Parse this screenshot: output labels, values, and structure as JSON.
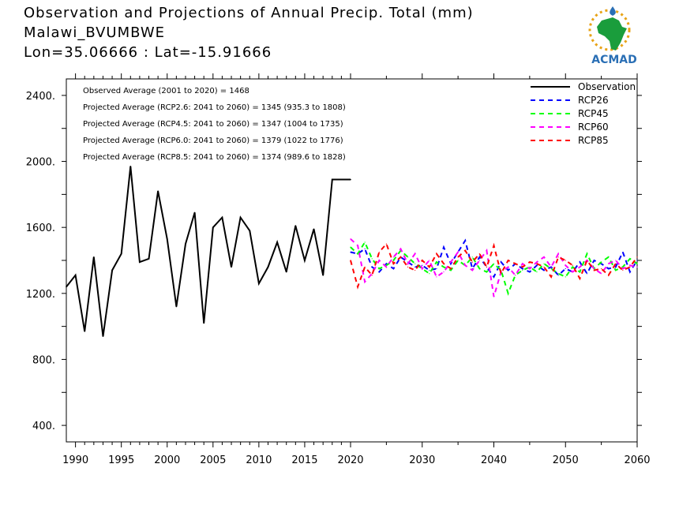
{
  "header": {
    "line1": "Observation and Projections of Annual Precip. Total (mm)",
    "line2": "Malawi_BVUMBWE",
    "line3": "Lon=35.06666 : Lat=-15.91666"
  },
  "logo": {
    "text": "ACMAD",
    "icon": "africa-map-logo",
    "colors": [
      "#e8a317",
      "#1a9d3c",
      "#2a6fb5"
    ]
  },
  "stats": [
    "Observed Average (2001 to 2020) = 1468",
    "Projected Average (RCP2.6: 2041 to 2060) = 1345 (935.3 to 1808)",
    "Projected Average (RCP4.5: 2041 to 2060) = 1347 (1004 to 1735)",
    "Projected Average (RCP6.0: 2041 to 2060) = 1379 (1022 to 1776)",
    "Projected Average (RCP8.5: 2041 to 2060) = 1374 (989.6 to 1828)"
  ],
  "chart_data": {
    "type": "line",
    "xlim": [
      1989,
      2060
    ],
    "ylim": [
      300,
      2500
    ],
    "x_ticks": [
      "1990",
      "1995",
      "2000",
      "2005",
      "2010",
      "2015",
      "2020",
      "2030",
      "2040",
      "2050",
      "2060"
    ],
    "y_ticks": [
      "400.",
      "800.",
      "1200.",
      "1600.",
      "2000.",
      "2400."
    ],
    "legend_position": "top-right",
    "observation": {
      "name": "Observation",
      "color": "#000000",
      "x": [
        1989,
        1990,
        1991,
        1992,
        1993,
        1994,
        1995,
        1996,
        1997,
        1998,
        1999,
        2000,
        2001,
        2002,
        2003,
        2004,
        2005,
        2006,
        2007,
        2008,
        2009,
        2010,
        2011,
        2012,
        2013,
        2014,
        2015,
        2016,
        2017,
        2018,
        2019,
        2020
      ],
      "y": [
        1240,
        1310,
        970,
        1420,
        940,
        1340,
        1440,
        1970,
        1390,
        1410,
        1820,
        1530,
        1120,
        1500,
        1690,
        1020,
        1600,
        1660,
        1360,
        1660,
        1580,
        1260,
        1360,
        1510,
        1330,
        1610,
        1400,
        1590,
        1310,
        1890,
        1890,
        1890
      ]
    },
    "series": [
      {
        "name": "RCP26",
        "color": "#0000ff",
        "x": [
          2020,
          2021,
          2022,
          2023,
          2024,
          2025,
          2026,
          2027,
          2028,
          2029,
          2030,
          2031,
          2032,
          2033,
          2034,
          2035,
          2036,
          2037,
          2038,
          2039,
          2040,
          2041,
          2042,
          2043,
          2044,
          2045,
          2046,
          2047,
          2048,
          2049,
          2050,
          2051,
          2052,
          2053,
          2054,
          2055,
          2056,
          2057,
          2058,
          2059,
          2060
        ],
        "y": [
          1450,
          1440,
          1470,
          1360,
          1330,
          1380,
          1350,
          1420,
          1390,
          1360,
          1370,
          1340,
          1350,
          1480,
          1380,
          1450,
          1520,
          1350,
          1420,
          1360,
          1300,
          1390,
          1340,
          1380,
          1350,
          1330,
          1370,
          1340,
          1360,
          1310,
          1350,
          1330,
          1390,
          1320,
          1400,
          1380,
          1350,
          1360,
          1450,
          1330,
          1400
        ]
      },
      {
        "name": "RCP45",
        "color": "#00ff00",
        "x": [
          2020,
          2021,
          2022,
          2023,
          2024,
          2025,
          2026,
          2027,
          2028,
          2029,
          2030,
          2031,
          2032,
          2033,
          2034,
          2035,
          2036,
          2037,
          2038,
          2039,
          2040,
          2041,
          2042,
          2043,
          2044,
          2045,
          2046,
          2047,
          2048,
          2049,
          2050,
          2051,
          2052,
          2053,
          2054,
          2055,
          2056,
          2057,
          2058,
          2059,
          2060
        ],
        "y": [
          1480,
          1440,
          1510,
          1410,
          1350,
          1370,
          1400,
          1460,
          1420,
          1380,
          1350,
          1320,
          1390,
          1360,
          1340,
          1400,
          1370,
          1420,
          1350,
          1330,
          1380,
          1340,
          1200,
          1310,
          1340,
          1360,
          1330,
          1380,
          1350,
          1320,
          1300,
          1360,
          1330,
          1440,
          1350,
          1390,
          1420,
          1340,
          1360,
          1410,
          1380
        ]
      },
      {
        "name": "RCP60",
        "color": "#ff00ff",
        "x": [
          2020,
          2021,
          2022,
          2023,
          2024,
          2025,
          2026,
          2027,
          2028,
          2029,
          2030,
          2031,
          2032,
          2033,
          2034,
          2035,
          2036,
          2037,
          2038,
          2039,
          2040,
          2041,
          2042,
          2043,
          2044,
          2045,
          2046,
          2047,
          2048,
          2049,
          2050,
          2051,
          2052,
          2053,
          2054,
          2055,
          2056,
          2057,
          2058,
          2059,
          2060
        ],
        "y": [
          1530,
          1490,
          1270,
          1320,
          1400,
          1360,
          1420,
          1470,
          1380,
          1440,
          1350,
          1400,
          1300,
          1330,
          1390,
          1450,
          1370,
          1340,
          1400,
          1460,
          1180,
          1330,
          1360,
          1310,
          1380,
          1350,
          1390,
          1420,
          1360,
          1440,
          1370,
          1330,
          1360,
          1400,
          1350,
          1320,
          1380,
          1400,
          1350,
          1370,
          1360
        ]
      },
      {
        "name": "RCP85",
        "color": "#ff0000",
        "x": [
          2020,
          2021,
          2022,
          2023,
          2024,
          2025,
          2026,
          2027,
          2028,
          2029,
          2030,
          2031,
          2032,
          2033,
          2034,
          2035,
          2036,
          2037,
          2038,
          2039,
          2040,
          2041,
          2042,
          2043,
          2044,
          2045,
          2046,
          2047,
          2048,
          2049,
          2050,
          2051,
          2052,
          2053,
          2054,
          2055,
          2056,
          2057,
          2058,
          2059,
          2060
        ],
        "y": [
          1400,
          1240,
          1360,
          1310,
          1450,
          1500,
          1380,
          1420,
          1360,
          1340,
          1400,
          1360,
          1440,
          1380,
          1350,
          1420,
          1460,
          1390,
          1440,
          1360,
          1490,
          1320,
          1400,
          1380,
          1360,
          1390,
          1380,
          1360,
          1300,
          1420,
          1400,
          1370,
          1290,
          1400,
          1340,
          1350,
          1310,
          1380,
          1340,
          1360,
          1420
        ]
      }
    ]
  }
}
